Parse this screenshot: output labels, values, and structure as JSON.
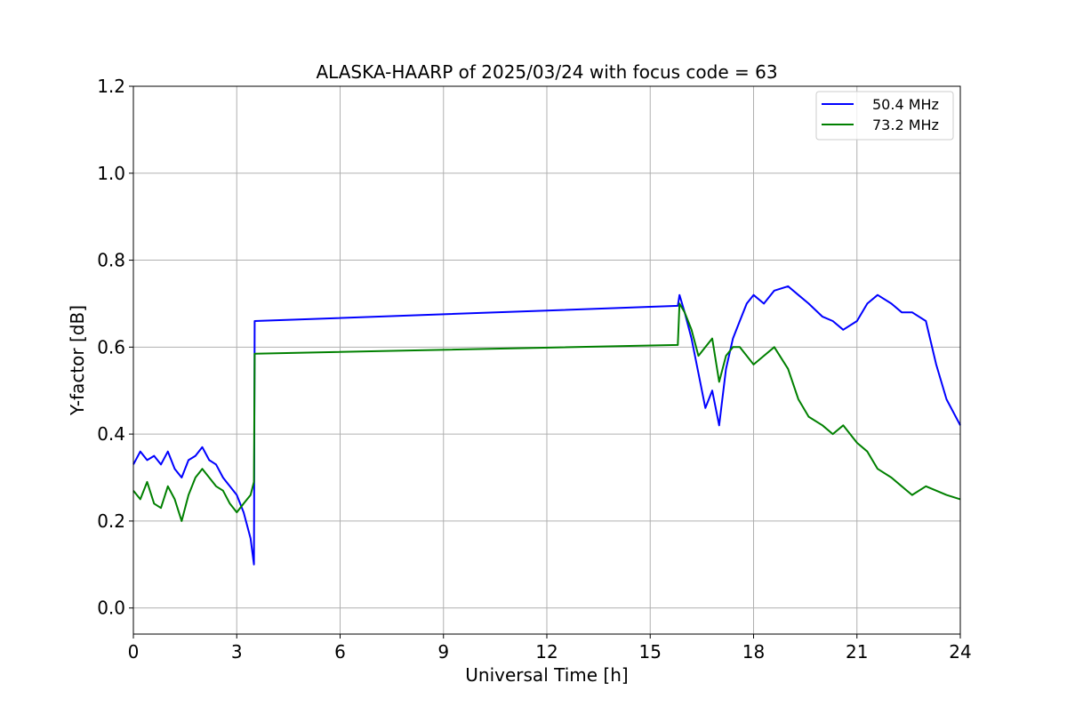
{
  "chart_data": {
    "type": "line",
    "title": "ALASKA-HAARP of 2025/03/24 with focus code = 63",
    "xlabel": "Universal Time [h]",
    "ylabel": "Y-factor [dB]",
    "xlim": [
      0,
      24
    ],
    "ylim": [
      -0.06,
      1.2
    ],
    "xticks": [
      0,
      3,
      6,
      9,
      12,
      15,
      18,
      21,
      24
    ],
    "xtick_labels": [
      "0",
      "3",
      "6",
      "9",
      "12",
      "15",
      "18",
      "21",
      "24"
    ],
    "yticks": [
      0.0,
      0.2,
      0.4,
      0.6,
      0.8,
      1.0,
      1.2
    ],
    "ytick_labels": [
      "0.0",
      "0.2",
      "0.4",
      "0.6",
      "0.8",
      "1.0",
      "1.2"
    ],
    "grid": true,
    "legend_position": "top-right",
    "series": [
      {
        "name": "50.4 MHz",
        "color": "#0000ff",
        "x": [
          0.0,
          0.2,
          0.4,
          0.6,
          0.8,
          1.0,
          1.2,
          1.4,
          1.6,
          1.8,
          2.0,
          2.2,
          2.4,
          2.6,
          2.8,
          3.0,
          3.2,
          3.4,
          3.5,
          3.52,
          15.8,
          15.85,
          16.0,
          16.2,
          16.4,
          16.6,
          16.8,
          17.0,
          17.2,
          17.4,
          17.6,
          17.8,
          18.0,
          18.3,
          18.6,
          19.0,
          19.3,
          19.6,
          20.0,
          20.3,
          20.6,
          21.0,
          21.3,
          21.6,
          22.0,
          22.3,
          22.6,
          23.0,
          23.3,
          23.6,
          24.0
        ],
        "y": [
          0.33,
          0.36,
          0.34,
          0.35,
          0.33,
          0.36,
          0.32,
          0.3,
          0.34,
          0.35,
          0.37,
          0.34,
          0.33,
          0.3,
          0.28,
          0.26,
          0.22,
          0.16,
          0.1,
          0.66,
          0.695,
          0.72,
          0.68,
          0.62,
          0.54,
          0.46,
          0.5,
          0.42,
          0.55,
          0.62,
          0.66,
          0.7,
          0.72,
          0.7,
          0.73,
          0.74,
          0.72,
          0.7,
          0.67,
          0.66,
          0.64,
          0.66,
          0.7,
          0.72,
          0.7,
          0.68,
          0.68,
          0.66,
          0.56,
          0.48,
          0.42
        ]
      },
      {
        "name": "73.2 MHz",
        "color": "#008000",
        "x": [
          0.0,
          0.2,
          0.4,
          0.6,
          0.8,
          1.0,
          1.2,
          1.4,
          1.6,
          1.8,
          2.0,
          2.2,
          2.4,
          2.6,
          2.8,
          3.0,
          3.2,
          3.4,
          3.5,
          3.52,
          15.8,
          15.85,
          16.0,
          16.2,
          16.4,
          16.6,
          16.8,
          17.0,
          17.2,
          17.4,
          17.6,
          17.8,
          18.0,
          18.3,
          18.6,
          19.0,
          19.3,
          19.6,
          20.0,
          20.3,
          20.6,
          21.0,
          21.3,
          21.6,
          22.0,
          22.3,
          22.6,
          23.0,
          23.3,
          23.6,
          24.0
        ],
        "y": [
          0.27,
          0.25,
          0.29,
          0.24,
          0.23,
          0.28,
          0.25,
          0.2,
          0.26,
          0.3,
          0.32,
          0.3,
          0.28,
          0.27,
          0.24,
          0.22,
          0.24,
          0.26,
          0.29,
          0.585,
          0.605,
          0.7,
          0.68,
          0.64,
          0.58,
          0.6,
          0.62,
          0.52,
          0.58,
          0.6,
          0.6,
          0.58,
          0.56,
          0.58,
          0.6,
          0.55,
          0.48,
          0.44,
          0.42,
          0.4,
          0.42,
          0.38,
          0.36,
          0.32,
          0.3,
          0.28,
          0.26,
          0.28,
          0.27,
          0.26,
          0.25
        ]
      }
    ]
  }
}
